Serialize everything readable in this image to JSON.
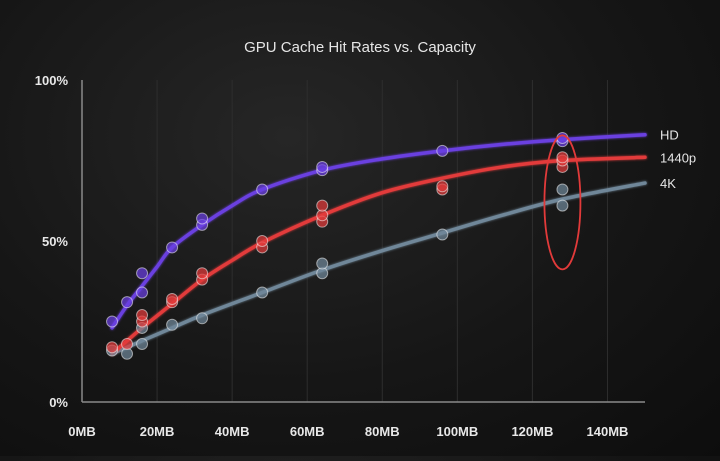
{
  "chart_data": {
    "type": "scatter",
    "title": "GPU Cache Hit Rates vs. Capacity",
    "xlabel": "",
    "ylabel": "",
    "xlim": [
      0,
      150
    ],
    "ylim": [
      0,
      100
    ],
    "x_ticks": [
      0,
      20,
      40,
      60,
      80,
      100,
      120,
      140
    ],
    "x_tick_labels": [
      "0MB",
      "20MB",
      "40MB",
      "60MB",
      "80MB",
      "100MB",
      "120MB",
      "140MB"
    ],
    "y_ticks": [
      0,
      50,
      100
    ],
    "y_tick_labels": [
      "0%",
      "50%",
      "100%"
    ],
    "grid": "vertical",
    "legend": "right, inline labels at line ends",
    "series": [
      {
        "name": "HD",
        "color": "#6a3fe0",
        "points": [
          [
            8,
            25
          ],
          [
            12,
            31
          ],
          [
            16,
            34
          ],
          [
            16,
            40
          ],
          [
            24,
            48
          ],
          [
            32,
            55
          ],
          [
            32,
            57
          ],
          [
            48,
            66
          ],
          [
            64,
            72
          ],
          [
            64,
            73
          ],
          [
            96,
            78
          ],
          [
            128,
            81
          ],
          [
            128,
            82
          ]
        ],
        "curve": [
          [
            8,
            23
          ],
          [
            12,
            30
          ],
          [
            16,
            36
          ],
          [
            20,
            42
          ],
          [
            24,
            48
          ],
          [
            32,
            55
          ],
          [
            40,
            61
          ],
          [
            48,
            66
          ],
          [
            64,
            72
          ],
          [
            80,
            75.5
          ],
          [
            96,
            78
          ],
          [
            112,
            80
          ],
          [
            128,
            81.5
          ],
          [
            150,
            83
          ]
        ]
      },
      {
        "name": "1440p",
        "color": "#e23a3a",
        "points": [
          [
            8,
            17
          ],
          [
            12,
            18
          ],
          [
            16,
            25
          ],
          [
            16,
            27
          ],
          [
            24,
            31
          ],
          [
            24,
            32
          ],
          [
            32,
            38
          ],
          [
            32,
            40
          ],
          [
            48,
            48
          ],
          [
            48,
            50
          ],
          [
            64,
            56
          ],
          [
            64,
            58
          ],
          [
            64,
            61
          ],
          [
            96,
            66
          ],
          [
            96,
            67
          ],
          [
            128,
            73
          ],
          [
            128,
            75
          ],
          [
            128,
            76
          ]
        ],
        "curve": [
          [
            8,
            15
          ],
          [
            12,
            19
          ],
          [
            16,
            23
          ],
          [
            24,
            30.5
          ],
          [
            32,
            38
          ],
          [
            40,
            44
          ],
          [
            48,
            49.5
          ],
          [
            64,
            58
          ],
          [
            80,
            65
          ],
          [
            96,
            69.5
          ],
          [
            112,
            73
          ],
          [
            128,
            75
          ],
          [
            150,
            76
          ]
        ]
      },
      {
        "name": "4K",
        "color": "#6f8799",
        "points": [
          [
            8,
            16
          ],
          [
            12,
            15
          ],
          [
            16,
            18
          ],
          [
            16,
            23
          ],
          [
            24,
            24
          ],
          [
            32,
            26
          ],
          [
            48,
            34
          ],
          [
            64,
            40
          ],
          [
            64,
            43
          ],
          [
            96,
            52
          ],
          [
            128,
            61
          ],
          [
            128,
            66
          ]
        ],
        "curve": [
          [
            8,
            15
          ],
          [
            16,
            19
          ],
          [
            24,
            23
          ],
          [
            32,
            27
          ],
          [
            48,
            34
          ],
          [
            64,
            41
          ],
          [
            80,
            47
          ],
          [
            96,
            52.5
          ],
          [
            112,
            58
          ],
          [
            128,
            63
          ],
          [
            150,
            68
          ]
        ]
      }
    ],
    "highlight": {
      "x": 128,
      "label": ""
    }
  }
}
